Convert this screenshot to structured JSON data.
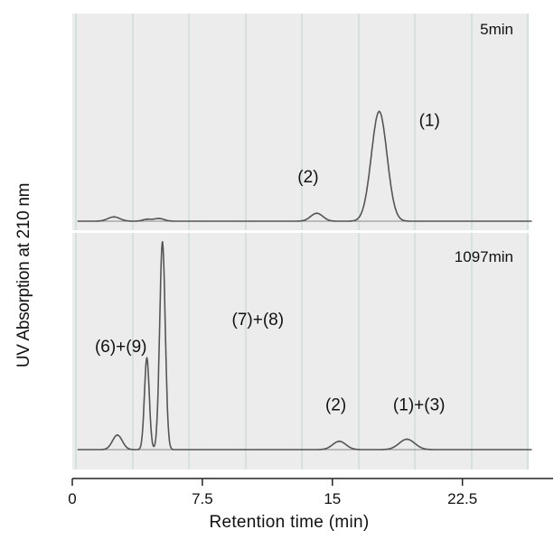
{
  "chart_data": {
    "type": "line",
    "ylabel": "UV Absorption at 210 nm",
    "xlabel": "Retention time (min)",
    "xlim": [
      0,
      27
    ],
    "xticks": [
      {
        "value": 0,
        "label": "0"
      },
      {
        "value": 7.5,
        "label": "7.5"
      },
      {
        "value": 15,
        "label": "15"
      },
      {
        "value": 22.5,
        "label": "22.5"
      }
    ],
    "panels": [
      {
        "time_label": "5min",
        "series": [
          {
            "peaks": [
              {
                "x": 2.4,
                "height": 0.035,
                "width": 0.35
              },
              {
                "x": 4.3,
                "height": 0.015,
                "width": 0.25
              },
              {
                "x": 5.0,
                "height": 0.022,
                "width": 0.3
              },
              {
                "x": 14.1,
                "height": 0.065,
                "width": 0.35
              },
              {
                "x": 17.7,
                "height": 0.9,
                "width": 0.45
              }
            ]
          }
        ],
        "annotations": [
          {
            "text": "(1)",
            "x": 20.6,
            "y": 0.78
          },
          {
            "text": "(2)",
            "x": 13.6,
            "y": 0.32
          }
        ]
      },
      {
        "time_label": "1097min",
        "series": [
          {
            "peaks": [
              {
                "x": 2.6,
                "height": 0.07,
                "width": 0.28
              },
              {
                "x": 4.3,
                "height": 0.44,
                "width": 0.14
              },
              {
                "x": 5.2,
                "height": 1.0,
                "width": 0.16
              },
              {
                "x": 15.4,
                "height": 0.04,
                "width": 0.38
              },
              {
                "x": 19.3,
                "height": 0.05,
                "width": 0.45
              }
            ]
          }
        ],
        "annotations": [
          {
            "text": "(6)+(9)",
            "x": 2.8,
            "y": 0.47
          },
          {
            "text": "(7)+(8)",
            "x": 10.7,
            "y": 0.6
          },
          {
            "text": "(2)",
            "x": 15.2,
            "y": 0.19
          },
          {
            "text": "(1)+(3)",
            "x": 20.0,
            "y": 0.19
          }
        ]
      }
    ]
  }
}
